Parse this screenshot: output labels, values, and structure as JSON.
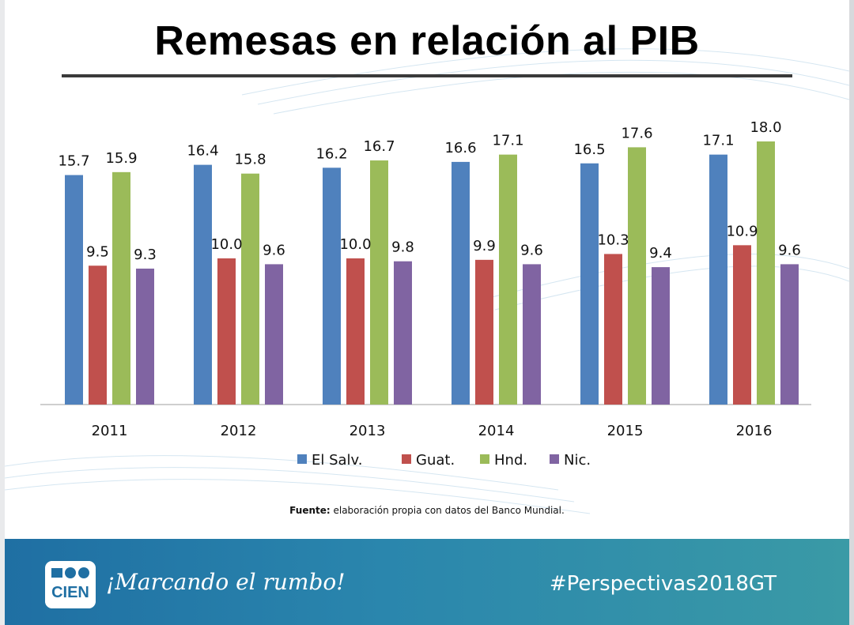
{
  "title": "Remesas en relación al PIB",
  "chart_data": {
    "type": "bar",
    "title": "Remesas en relación al PIB",
    "categories": [
      "2011",
      "2012",
      "2013",
      "2014",
      "2015",
      "2016"
    ],
    "series": [
      {
        "name": "El Salv.",
        "color": "#4f81bd",
        "values": [
          15.7,
          16.4,
          16.2,
          16.6,
          16.5,
          17.1
        ]
      },
      {
        "name": "Guat.",
        "color": "#c0504d",
        "values": [
          9.5,
          10.0,
          10.0,
          9.9,
          10.3,
          10.9
        ]
      },
      {
        "name": "Hnd.",
        "color": "#9bbb59",
        "values": [
          15.9,
          15.8,
          16.7,
          17.1,
          17.6,
          18.0
        ]
      },
      {
        "name": "Nic.",
        "color": "#8064a2",
        "values": [
          9.3,
          9.6,
          9.8,
          9.6,
          9.4,
          9.6
        ]
      }
    ],
    "ylim": [
      0,
      20
    ],
    "xlabel": "",
    "ylabel": "",
    "legend": "bottom",
    "grid": false
  },
  "source": {
    "label": "Fuente:",
    "text": " elaboración propia con datos del Banco Mundial."
  },
  "footer": {
    "logo_top": "CIEN",
    "tagline": "¡Marcando el rumbo!",
    "hashtag": "#Perspectivas2018GT",
    "logo_bg": "#ffffff",
    "logo_fg": "#1f6fa3"
  }
}
